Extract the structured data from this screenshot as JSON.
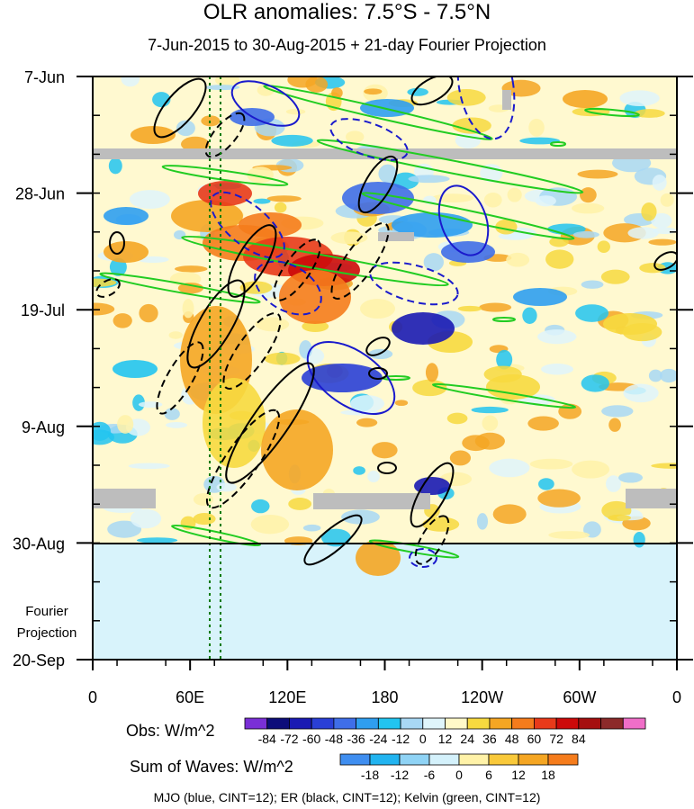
{
  "chart_data": {
    "type": "heatmap",
    "title": "OLR anomalies: 7.5°S - 7.5°N",
    "subtitle": "7-Jun-2015 to 30-Aug-2015 + 21-day Fourier Projection",
    "x_ticks": [
      "0",
      "60E",
      "120E",
      "180",
      "120W",
      "60W",
      "0"
    ],
    "y_ticks": [
      "7-Jun",
      "28-Jun",
      "19-Jul",
      "9-Aug",
      "30-Aug",
      "20-Sep"
    ],
    "projection_label": "Fourier Projection",
    "obs_legend": {
      "label": "Obs: W/m^2",
      "levels": [
        "-84",
        "-72",
        "-60",
        "-48",
        "-36",
        "-24",
        "-12",
        "0",
        "12",
        "24",
        "36",
        "48",
        "60",
        "72",
        "84"
      ],
      "colors": [
        "#7a2fd6",
        "#0d0d7a",
        "#1a1ab3",
        "#2a3fd6",
        "#3f6ee8",
        "#2f9ef0",
        "#22c4f0",
        "#a8d8f5",
        "#dff5fb",
        "#fff9c8",
        "#f7d93f",
        "#f5a623",
        "#f57c1c",
        "#e83a1a",
        "#cc0a0a",
        "#a50f0f",
        "#8c2a2a",
        "#f06ec8"
      ]
    },
    "waves_legend": {
      "label": "Sum of Waves: W/m^2",
      "levels": [
        "-18",
        "-12",
        "-6",
        "0",
        "6",
        "12",
        "18"
      ],
      "colors": [
        "#3f8ef0",
        "#22b4f0",
        "#8fd3f5",
        "#d4f1fb",
        "#fff2a8",
        "#f9c93a",
        "#f5a623",
        "#f57c1c"
      ]
    },
    "footer": "MJO (blue, CINT=12); ER (black, CINT=12); Kelvin (green, CINT=12)",
    "series_colors": {
      "MJO": "#1a1acc",
      "ER": "#000000",
      "Kelvin": "#22cc22"
    }
  }
}
